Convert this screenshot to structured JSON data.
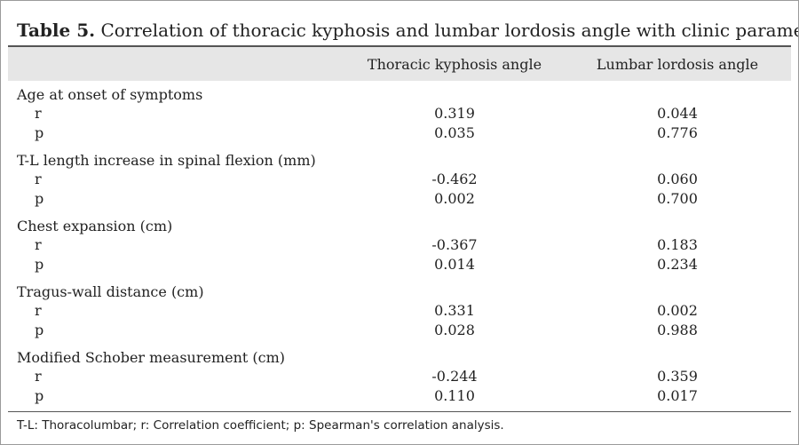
{
  "table": {
    "label": "Table 5.",
    "title": "Correlation of thoracic kyphosis and lumbar lordosis angle with clinic parameters",
    "columns": [
      "Thoracic kyphosis angle",
      "Lumbar lordosis angle"
    ],
    "groups": [
      {
        "name": "Age at onset of symptoms",
        "rows": [
          [
            "r",
            "0.319",
            "0.044"
          ],
          [
            "p",
            "0.035",
            "0.776"
          ]
        ]
      },
      {
        "name": "T-L length increase in spinal flexion (mm)",
        "rows": [
          [
            "r",
            "-0.462",
            "0.060"
          ],
          [
            "p",
            "0.002",
            "0.700"
          ]
        ]
      },
      {
        "name": "Chest expansion (cm)",
        "rows": [
          [
            "r",
            "-0.367",
            "0.183"
          ],
          [
            "p",
            "0.014",
            "0.234"
          ]
        ]
      },
      {
        "name": "Tragus-wall distance (cm)",
        "rows": [
          [
            "r",
            "0.331",
            "0.002"
          ],
          [
            "p",
            "0.028",
            "0.988"
          ]
        ]
      },
      {
        "name": "Modified Schober measurement (cm)",
        "rows": [
          [
            "r",
            "-0.244",
            "0.359"
          ],
          [
            "p",
            "0.110",
            "0.017"
          ]
        ]
      }
    ],
    "footnote": "T-L: Thoracolumbar; r: Correlation coefficient; p: Spearman's correlation analysis."
  }
}
